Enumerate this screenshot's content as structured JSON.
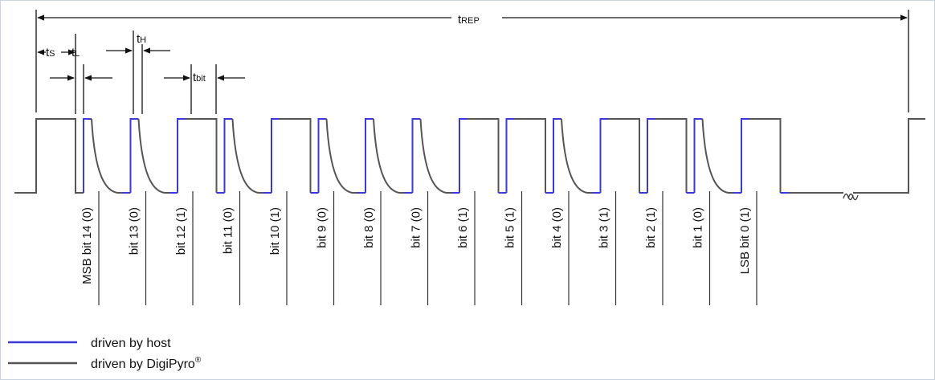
{
  "timing": {
    "t_rep": {
      "t": "t",
      "sub": "REP"
    },
    "t_s": {
      "t": "t",
      "sub": "S"
    },
    "t_l": {
      "t": "t",
      "sub": "L"
    },
    "t_h": {
      "t": "t",
      "sub": "H"
    },
    "t_bit": {
      "t": "t",
      "sub": "bit"
    }
  },
  "bits": [
    {
      "label": "MSB bit 14 (0)",
      "value": 0
    },
    {
      "label": "bit 13 (0)",
      "value": 0
    },
    {
      "label": "bit 12 (1)",
      "value": 1
    },
    {
      "label": "bit 11 (0)",
      "value": 0
    },
    {
      "label": "bit 10 (1)",
      "value": 1
    },
    {
      "label": "bit 9 (0)",
      "value": 0
    },
    {
      "label": "bit 8 (0)",
      "value": 0
    },
    {
      "label": "bit 7 (0)",
      "value": 0
    },
    {
      "label": "bit 6 (1)",
      "value": 1
    },
    {
      "label": "bit 5 (1)",
      "value": 1
    },
    {
      "label": "bit 4 (0)",
      "value": 0
    },
    {
      "label": "bit 3 (1)",
      "value": 1
    },
    {
      "label": "bit 2 (1)",
      "value": 1
    },
    {
      "label": "bit 1 (0)",
      "value": 0
    },
    {
      "label": "LSB bit 0 (1)",
      "value": 1
    }
  ],
  "legend": {
    "host": {
      "label": "driven by host",
      "color": "#3a3ad6"
    },
    "device": {
      "label": "driven by DigiPyro",
      "sup": "®",
      "color": "#555555"
    }
  }
}
